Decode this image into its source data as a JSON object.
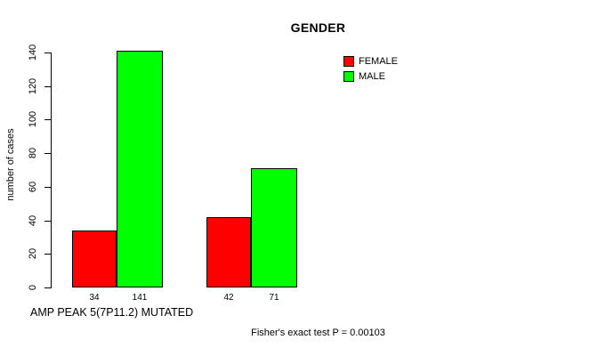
{
  "colors": {
    "background": "#FFFFFF",
    "axis": "#000000",
    "text": "#000000",
    "female": "#FF0000",
    "male": "#00FF00"
  },
  "chart_data": {
    "type": "bar",
    "title": "GENDER",
    "ylabel": "number of cases",
    "xlabel": "AMP PEAK 5(7P11.2) MUTATED",
    "ylim": [
      0,
      140
    ],
    "yticks": [
      0,
      20,
      40,
      60,
      80,
      100,
      120,
      140
    ],
    "grid": false,
    "legend_position": "top-right",
    "groups": 2,
    "series": [
      {
        "name": "FEMALE",
        "color": "#FF0000",
        "values": [
          34,
          42
        ]
      },
      {
        "name": "MALE",
        "color": "#00FF00",
        "values": [
          141,
          71
        ]
      }
    ],
    "bar_value_labels": [
      "34",
      "141",
      "42",
      "71"
    ],
    "annotation": "Fisher's exact test P = 0.00103"
  }
}
